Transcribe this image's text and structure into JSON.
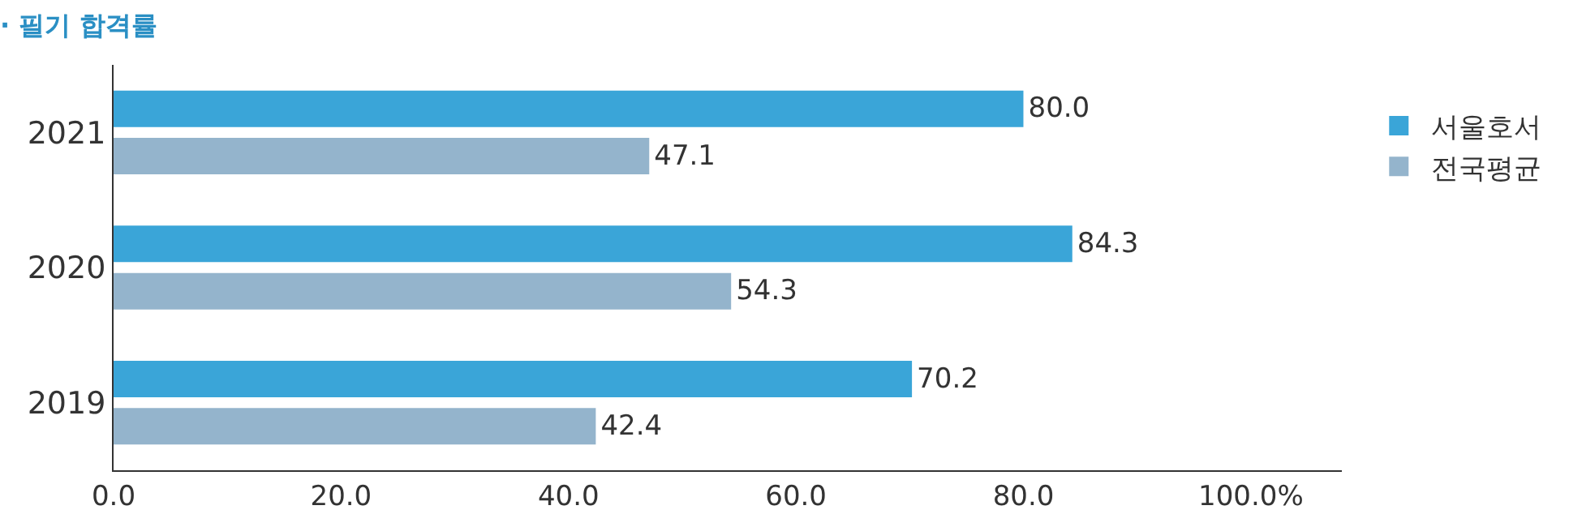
{
  "chart_data": {
    "type": "bar",
    "orientation": "horizontal",
    "title": "· 필기 합격률",
    "categories": [
      "2021",
      "2020",
      "2019"
    ],
    "series": [
      {
        "name": "서울호서",
        "color": "#3aa5d8",
        "values": [
          80.0,
          84.3,
          70.2
        ],
        "value_labels": [
          "80.0",
          "84.3",
          "70.2"
        ]
      },
      {
        "name": "전국평균",
        "color": "#94b4cc",
        "values": [
          47.1,
          54.3,
          42.4
        ],
        "value_labels": [
          "47.1",
          "54.3",
          "42.4"
        ]
      }
    ],
    "xlim": [
      0,
      108
    ],
    "xticks": [
      {
        "value": 0,
        "label": "0.0"
      },
      {
        "value": 20,
        "label": "20.0"
      },
      {
        "value": 40,
        "label": "40.0"
      },
      {
        "value": 60,
        "label": "60.0"
      },
      {
        "value": 80,
        "label": "80.0"
      },
      {
        "value": 100,
        "label": "100.0%"
      }
    ],
    "grid": false,
    "legend": "top right"
  }
}
